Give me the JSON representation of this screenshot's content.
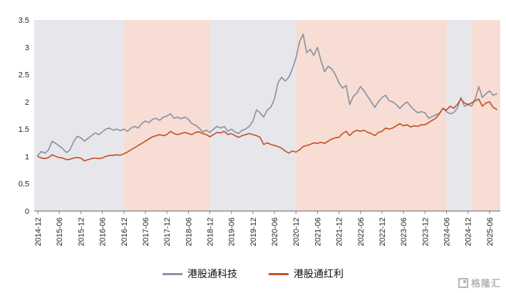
{
  "chart_data": {
    "type": "line",
    "x_unit": "month",
    "x_start_label": "2014-12",
    "x_tick_interval_months": 6,
    "x_ticks": [
      "2014-12",
      "2015-06",
      "2015-12",
      "2016-06",
      "2016-12",
      "2017-06",
      "2017-12",
      "2018-06",
      "2018-12",
      "2019-06",
      "2019-12",
      "2020-06",
      "2020-12",
      "2021-06",
      "2021-12",
      "2022-06",
      "2022-12",
      "2023-06",
      "2023-12",
      "2024-06",
      "2024-12",
      "2025-06"
    ],
    "y_ticks": [
      "0",
      "0.5",
      "1",
      "1.5",
      "2",
      "2.5",
      "3",
      "3.5"
    ],
    "ylim": [
      0,
      3.5
    ],
    "grid": false,
    "legend_position": "bottom-center",
    "band_colors": {
      "gray": "#e7e7eb",
      "pink": "#f7ddd3"
    },
    "bands": [
      {
        "start": 0,
        "end": 24,
        "type": "gray"
      },
      {
        "start": 24,
        "end": 48,
        "type": "pink"
      },
      {
        "start": 48,
        "end": 72,
        "type": "gray"
      },
      {
        "start": 72,
        "end": 114,
        "type": "pink"
      },
      {
        "start": 114,
        "end": 121,
        "type": "gray"
      },
      {
        "start": 121,
        "end": 129,
        "type": "pink"
      }
    ],
    "series": [
      {
        "id": "tech",
        "name": "港股通科技",
        "color": "#8a94a6",
        "values": [
          1.02,
          1.09,
          1.06,
          1.12,
          1.28,
          1.24,
          1.19,
          1.14,
          1.07,
          1.12,
          1.27,
          1.37,
          1.34,
          1.28,
          1.33,
          1.38,
          1.43,
          1.4,
          1.45,
          1.5,
          1.52,
          1.48,
          1.5,
          1.47,
          1.5,
          1.46,
          1.52,
          1.55,
          1.52,
          1.6,
          1.65,
          1.62,
          1.68,
          1.7,
          1.66,
          1.72,
          1.74,
          1.78,
          1.7,
          1.72,
          1.69,
          1.72,
          1.68,
          1.6,
          1.57,
          1.52,
          1.45,
          1.48,
          1.44,
          1.5,
          1.55,
          1.52,
          1.55,
          1.46,
          1.5,
          1.45,
          1.42,
          1.48,
          1.5,
          1.55,
          1.65,
          1.85,
          1.8,
          1.72,
          1.85,
          1.9,
          2.05,
          2.35,
          2.45,
          2.38,
          2.45,
          2.6,
          2.8,
          3.1,
          3.24,
          2.9,
          2.96,
          2.85,
          3.0,
          2.75,
          2.55,
          2.65,
          2.6,
          2.5,
          2.35,
          2.25,
          2.3,
          1.95,
          2.1,
          2.16,
          2.28,
          2.2,
          2.1,
          2.0,
          1.9,
          2.0,
          2.08,
          2.12,
          2.02,
          2.0,
          1.95,
          1.88,
          1.95,
          2.0,
          1.92,
          1.85,
          1.8,
          1.82,
          1.8,
          1.7,
          1.73,
          1.76,
          1.79,
          1.88,
          1.82,
          1.78,
          1.8,
          1.88,
          2.08,
          1.92,
          1.95,
          1.92,
          2.05,
          2.28,
          2.08,
          2.15,
          2.2,
          2.12,
          2.15
        ]
      },
      {
        "id": "dividend",
        "name": "港股通红利",
        "color": "#c3542c",
        "values": [
          1.0,
          0.97,
          0.96,
          0.98,
          1.03,
          1.0,
          0.98,
          0.97,
          0.94,
          0.95,
          0.97,
          0.98,
          0.97,
          0.92,
          0.94,
          0.96,
          0.97,
          0.96,
          0.97,
          1.0,
          1.02,
          1.02,
          1.03,
          1.02,
          1.05,
          1.08,
          1.12,
          1.16,
          1.2,
          1.24,
          1.28,
          1.32,
          1.36,
          1.38,
          1.4,
          1.38,
          1.4,
          1.46,
          1.42,
          1.4,
          1.42,
          1.44,
          1.42,
          1.4,
          1.44,
          1.45,
          1.42,
          1.4,
          1.36,
          1.4,
          1.44,
          1.43,
          1.46,
          1.4,
          1.42,
          1.38,
          1.35,
          1.38,
          1.4,
          1.42,
          1.4,
          1.38,
          1.35,
          1.22,
          1.25,
          1.22,
          1.2,
          1.18,
          1.15,
          1.1,
          1.06,
          1.1,
          1.08,
          1.12,
          1.18,
          1.2,
          1.22,
          1.25,
          1.24,
          1.26,
          1.24,
          1.28,
          1.32,
          1.34,
          1.35,
          1.42,
          1.46,
          1.38,
          1.45,
          1.48,
          1.46,
          1.48,
          1.44,
          1.42,
          1.38,
          1.44,
          1.46,
          1.52,
          1.5,
          1.52,
          1.56,
          1.6,
          1.56,
          1.58,
          1.54,
          1.56,
          1.55,
          1.58,
          1.58,
          1.62,
          1.66,
          1.7,
          1.78,
          1.88,
          1.85,
          1.92,
          1.88,
          1.95,
          2.05,
          1.98,
          1.95,
          1.98,
          2.02,
          2.05,
          1.92,
          1.98,
          2.0,
          1.9,
          1.86
        ]
      }
    ]
  },
  "watermark": {
    "text": "格隆汇"
  }
}
